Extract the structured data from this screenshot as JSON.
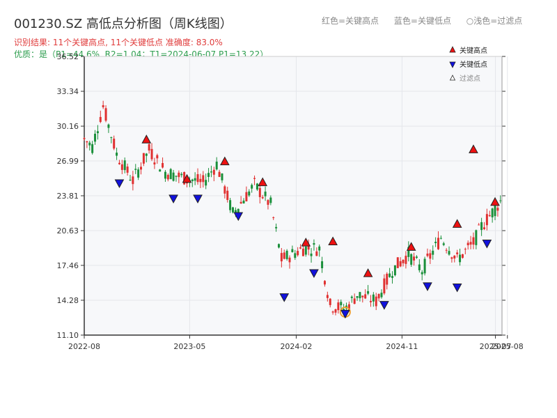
{
  "title": "001230.SZ 高低点分析图（周K线图）",
  "subtitle": "识别结果: 11个关键高点, 11个关键低点   准确度: 83.0%",
  "quality": "优质：是（P1=44.6%, R2=1.04；T1=2024-06-07 P1=13.22）",
  "top_legend": [
    "红色=关键高点",
    "蓝色=关键低点",
    "○浅色=过滤点"
  ],
  "colors": {
    "up": "#e03030",
    "down": "#1a8f3a",
    "high": "#ee1111",
    "low": "#1111dd",
    "filtered": "#f0a030",
    "bg": "#f7f8fa",
    "grid": "#e4e6eb"
  },
  "chart_data": {
    "type": "candlestick",
    "ylim": [
      11.1,
      36.52
    ],
    "y_ticks": [
      "11.10",
      "14.28",
      "17.46",
      "20.63",
      "23.81",
      "26.99",
      "30.16",
      "33.34",
      "36.52"
    ],
    "x_range": [
      "2022-08-01",
      "2025-07-18"
    ],
    "x_ticks": [
      {
        "date": "2022-08-01",
        "label": "2022-08"
      },
      {
        "date": "2023-05-01",
        "label": "2023-05"
      },
      {
        "date": "2024-02-01",
        "label": "2024-02"
      },
      {
        "date": "2024-11-01",
        "label": "2024-11"
      },
      {
        "date": "2025-07-01",
        "label": "2025-07"
      },
      {
        "date": "2025-08-01",
        "label": "2025-08"
      }
    ],
    "legend": [
      {
        "key": "high",
        "label": "关键高点"
      },
      {
        "key": "low",
        "label": "关键低点"
      },
      {
        "key": "filtered",
        "label": "过滤点"
      }
    ],
    "anchors": [
      [
        "2022-08-01",
        29.0
      ],
      [
        "2022-08-22",
        28.3
      ],
      [
        "2022-09-19",
        32.0
      ],
      [
        "2022-10-24",
        27.6
      ],
      [
        "2022-12-05",
        25.2
      ],
      [
        "2023-01-16",
        28.0
      ],
      [
        "2023-02-27",
        26.0
      ],
      [
        "2023-04-10",
        25.5
      ],
      [
        "2023-06-05",
        25.0
      ],
      [
        "2023-07-10",
        26.7
      ],
      [
        "2023-08-21",
        22.2
      ],
      [
        "2023-10-16",
        24.8
      ],
      [
        "2023-11-27",
        23.0
      ],
      [
        "2023-12-25",
        18.0
      ],
      [
        "2024-02-19",
        19.0
      ],
      [
        "2024-04-01",
        19.0
      ],
      [
        "2024-04-29",
        13.8
      ],
      [
        "2024-06-07",
        13.5
      ],
      [
        "2024-07-08",
        14.8
      ],
      [
        "2024-08-26",
        14.2
      ],
      [
        "2024-10-07",
        17.0
      ],
      [
        "2024-11-18",
        18.5
      ],
      [
        "2024-12-23",
        17.0
      ],
      [
        "2025-02-10",
        20.0
      ],
      [
        "2025-03-24",
        18.0
      ],
      [
        "2025-05-05",
        19.5
      ],
      [
        "2025-05-26",
        21.0
      ],
      [
        "2025-07-18",
        23.5
      ]
    ],
    "key_highs": [
      {
        "date": "2023-01-09",
        "value": 28.5
      },
      {
        "date": "2023-04-24",
        "value": 24.9
      },
      {
        "date": "2023-07-31",
        "value": 26.5
      },
      {
        "date": "2023-11-06",
        "value": 24.6
      },
      {
        "date": "2024-02-26",
        "value": 19.1
      },
      {
        "date": "2024-05-06",
        "value": 19.2
      },
      {
        "date": "2024-08-05",
        "value": 16.3
      },
      {
        "date": "2024-11-25",
        "value": 18.7
      },
      {
        "date": "2025-03-24",
        "value": 20.8
      },
      {
        "date": "2025-05-05",
        "value": 27.6
      },
      {
        "date": "2025-06-30",
        "value": 22.8
      }
    ],
    "key_lows": [
      {
        "date": "2022-10-31",
        "value": 25.4
      },
      {
        "date": "2023-03-20",
        "value": 24.0
      },
      {
        "date": "2023-05-22",
        "value": 24.0
      },
      {
        "date": "2023-09-04",
        "value": 22.4
      },
      {
        "date": "2024-01-01",
        "value": 15.0
      },
      {
        "date": "2024-03-18",
        "value": 17.2
      },
      {
        "date": "2024-06-07",
        "value": 13.5
      },
      {
        "date": "2024-09-16",
        "value": 14.3
      },
      {
        "date": "2025-01-06",
        "value": 16.0
      },
      {
        "date": "2025-03-24",
        "value": 15.9
      },
      {
        "date": "2025-06-09",
        "value": 19.9
      }
    ],
    "filtered_points": [
      {
        "date": "2024-06-07",
        "value": 13.2
      }
    ]
  }
}
